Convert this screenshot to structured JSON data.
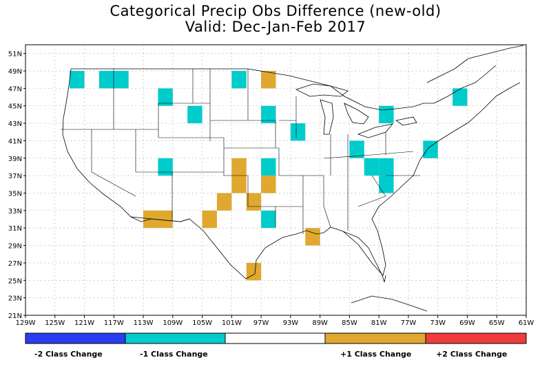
{
  "title": {
    "line1": "Categorical Precip Obs Difference (new-old)",
    "line2": "Valid: Dec-Jan-Feb 2017"
  },
  "axes": {
    "lon_labels": [
      "129W",
      "125W",
      "121W",
      "117W",
      "113W",
      "109W",
      "105W",
      "101W",
      "97W",
      "93W",
      "89W",
      "85W",
      "81W",
      "77W",
      "73W",
      "69W",
      "65W",
      "61W"
    ],
    "lat_labels": [
      "51N",
      "49N",
      "47N",
      "45N",
      "43N",
      "41N",
      "39N",
      "37N",
      "35N",
      "33N",
      "31N",
      "29N",
      "27N",
      "25N",
      "23N",
      "21N"
    ],
    "lon_values": [
      -129,
      -125,
      -121,
      -117,
      -113,
      -109,
      -105,
      -101,
      -97,
      -93,
      -89,
      -85,
      -81,
      -77,
      -73,
      -69,
      -65,
      -61
    ],
    "lat_values": [
      51,
      49,
      47,
      45,
      43,
      41,
      39,
      37,
      35,
      33,
      31,
      29,
      27,
      25,
      23,
      21
    ]
  },
  "colors": {
    "minus2": "#2b3cf2",
    "minus1": "#00cccc",
    "zero": "#ffffff",
    "plus1": "#e0a82e",
    "plus2": "#f03c3c",
    "grid": "#9a9a9a",
    "map_lines": "#000000"
  },
  "legend": {
    "labels": [
      "-2 Class Change",
      "-1 Class Change",
      "+1 Class Change",
      "+2 Class Change"
    ]
  },
  "chart_data": {
    "type": "heatmap",
    "cell_size_deg": 2,
    "cells": [
      {
        "lon": -122,
        "lat": 48,
        "v": -1
      },
      {
        "lon": -118,
        "lat": 48,
        "v": -1
      },
      {
        "lon": -116,
        "lat": 48,
        "v": -1
      },
      {
        "lon": -110,
        "lat": 46,
        "v": -1
      },
      {
        "lon": -106,
        "lat": 44,
        "v": -1
      },
      {
        "lon": -100,
        "lat": 48,
        "v": -1
      },
      {
        "lon": -96,
        "lat": 48,
        "v": 1
      },
      {
        "lon": -96,
        "lat": 44,
        "v": -1
      },
      {
        "lon": -92,
        "lat": 42,
        "v": -1
      },
      {
        "lon": -84,
        "lat": 40,
        "v": -1
      },
      {
        "lon": -80,
        "lat": 44,
        "v": -1
      },
      {
        "lon": -70,
        "lat": 46,
        "v": -1
      },
      {
        "lon": -74,
        "lat": 40,
        "v": -1
      },
      {
        "lon": -110,
        "lat": 38,
        "v": -1
      },
      {
        "lon": -82,
        "lat": 38,
        "v": -1
      },
      {
        "lon": -80,
        "lat": 38,
        "v": -1
      },
      {
        "lon": -80,
        "lat": 36,
        "v": -1
      },
      {
        "lon": -96,
        "lat": 38,
        "v": -1
      },
      {
        "lon": -96,
        "lat": 32,
        "v": -1
      },
      {
        "lon": -100,
        "lat": 38,
        "v": 1
      },
      {
        "lon": -100,
        "lat": 36,
        "v": 1
      },
      {
        "lon": -102,
        "lat": 34,
        "v": 1
      },
      {
        "lon": -104,
        "lat": 32,
        "v": 1
      },
      {
        "lon": -96,
        "lat": 36,
        "v": 1
      },
      {
        "lon": -98,
        "lat": 34,
        "v": 1
      },
      {
        "lon": -112,
        "lat": 32,
        "v": 1
      },
      {
        "lon": -110,
        "lat": 32,
        "v": 1
      },
      {
        "lon": -90,
        "lat": 30,
        "v": 1
      },
      {
        "lon": -98,
        "lat": 26,
        "v": 1
      }
    ],
    "xlim": [
      -129,
      -61
    ],
    "ylim": [
      21,
      52
    ]
  }
}
